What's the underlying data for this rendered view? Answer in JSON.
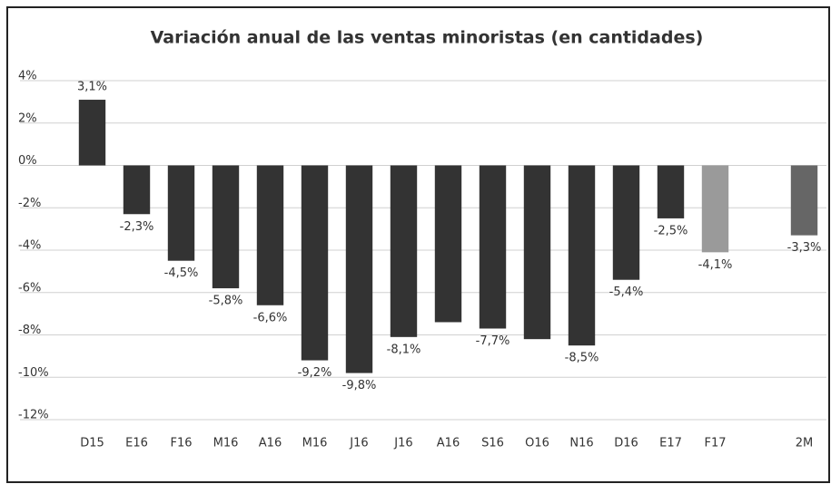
{
  "chart_data": {
    "type": "bar",
    "title": "Variación anual de las ventas minoristas (en cantidades)",
    "categories": [
      "D15",
      "E16",
      "F16",
      "M16",
      "A16",
      "M16",
      "J16",
      "J16",
      "A16",
      "S16",
      "O16",
      "N16",
      "D16",
      "E17",
      "F17",
      null,
      "2M"
    ],
    "values": [
      3.1,
      -2.3,
      -4.5,
      -5.8,
      -6.6,
      -9.2,
      -9.8,
      -8.1,
      -7.4,
      -7.7,
      -8.2,
      -8.5,
      -5.4,
      -2.5,
      -4.1,
      null,
      -3.3
    ],
    "value_labels": [
      "3,1%",
      "-2,3%",
      "-4,5%",
      "-5,8%",
      "-6,6%",
      "-9,2%",
      "-9,8%",
      "-8,1%",
      null,
      "-7,7%",
      null,
      "-8,5%",
      "-5,4%",
      "-2,5%",
      "-4,1%",
      null,
      "-3,3%"
    ],
    "colors": [
      "#333333",
      "#333333",
      "#333333",
      "#333333",
      "#333333",
      "#333333",
      "#333333",
      "#333333",
      "#333333",
      "#333333",
      "#333333",
      "#333333",
      "#333333",
      "#333333",
      "#9a9a9a",
      null,
      "#666666"
    ],
    "ylim": [
      -12,
      4
    ],
    "yticks": [
      {
        "value": -12,
        "label": "-12%"
      },
      {
        "value": -10,
        "label": "-10%"
      },
      {
        "value": -8,
        "label": "-8%"
      },
      {
        "value": -6,
        "label": "-6%"
      },
      {
        "value": -4,
        "label": "-4%"
      },
      {
        "value": -2,
        "label": "-2%"
      },
      {
        "value": 0,
        "label": "0%"
      },
      {
        "value": 2,
        "label": "2%"
      },
      {
        "value": 4,
        "label": "4%"
      }
    ],
    "grid": true
  }
}
